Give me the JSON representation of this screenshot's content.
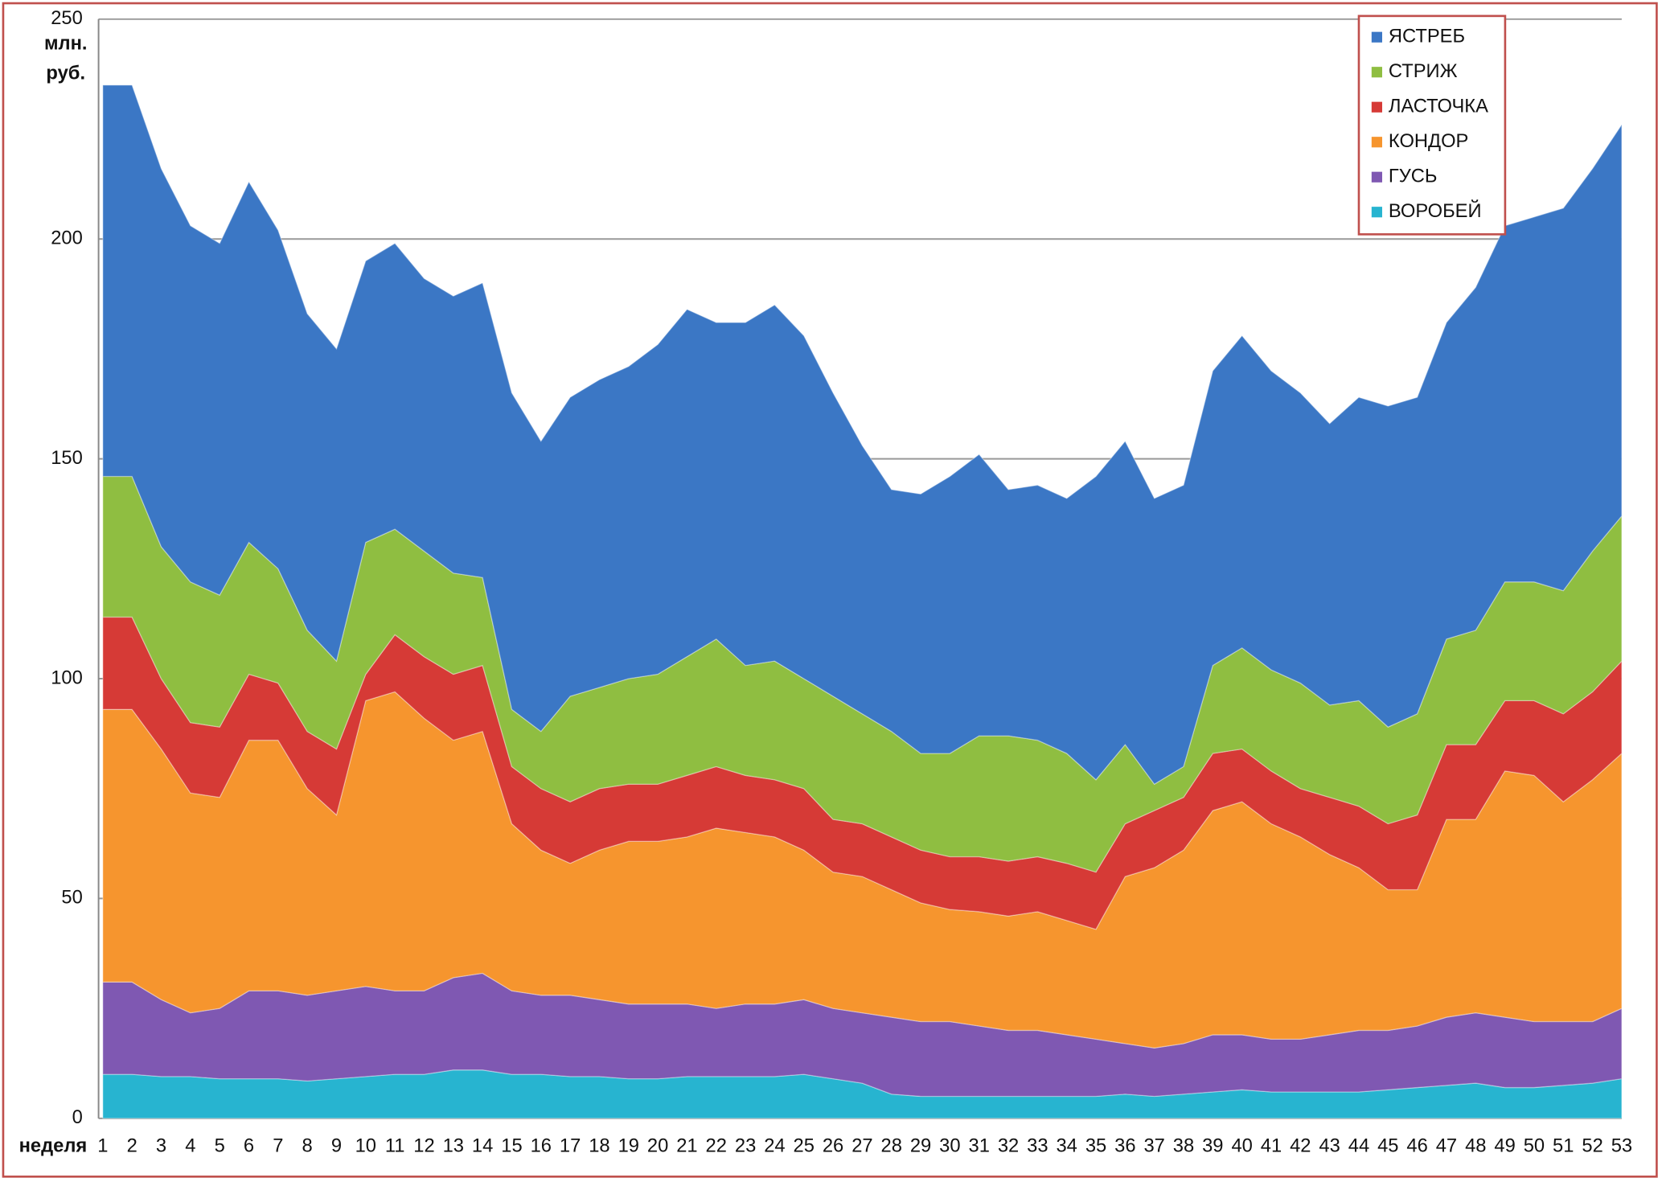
{
  "chart_data": {
    "type": "stacked-area",
    "y_label": "млн. руб.",
    "x_label": "неделя",
    "categories": [
      "1",
      "2",
      "3",
      "4",
      "5",
      "6",
      "7",
      "8",
      "9",
      "10",
      "11",
      "12",
      "13",
      "14",
      "15",
      "16",
      "17",
      "18",
      "19",
      "20",
      "21",
      "22",
      "23",
      "24",
      "25",
      "26",
      "27",
      "28",
      "29",
      "30",
      "31",
      "32",
      "33",
      "34",
      "35",
      "36",
      "37",
      "38",
      "39",
      "40",
      "41",
      "42",
      "43",
      "44",
      "45",
      "46",
      "47",
      "48",
      "49",
      "50",
      "51",
      "52",
      "53"
    ],
    "ylim": [
      0,
      250
    ],
    "yticks": [
      0,
      50,
      100,
      150,
      200,
      250
    ],
    "grid": true,
    "legend": "top-right",
    "series": [
      {
        "name": "ВОРОБЕЙ",
        "color": "#27b4d0",
        "values": [
          10,
          10,
          9.5,
          9.5,
          9,
          9,
          9,
          8.5,
          9,
          9.5,
          10,
          10,
          11,
          11,
          10,
          10,
          9.5,
          9.5,
          9,
          9,
          9.5,
          9.5,
          9.5,
          9.5,
          10,
          9,
          8,
          5.5,
          5,
          5,
          5,
          5,
          5,
          5,
          5,
          5.5,
          5,
          5.5,
          6,
          6.5,
          6,
          6,
          6,
          6,
          6.5,
          7,
          7.5,
          8,
          7,
          7,
          7.5,
          8,
          9
        ]
      },
      {
        "name": "ГУСЬ",
        "color": "#7f58b2",
        "values": [
          21,
          21,
          17.5,
          14.5,
          16,
          20,
          20,
          19.5,
          20,
          20.5,
          19,
          19,
          21,
          22,
          19,
          18,
          18.5,
          17.5,
          17,
          17,
          16.5,
          15.5,
          16.5,
          16.5,
          17,
          16,
          16,
          17.5,
          17,
          17,
          16,
          15,
          15,
          14,
          13,
          11.5,
          11,
          11.5,
          13,
          12.5,
          12,
          12,
          13,
          14,
          13.5,
          14,
          15.5,
          16,
          16,
          15,
          14.5,
          14,
          16
        ]
      },
      {
        "name": "КОНДОР",
        "color": "#f6952e",
        "values": [
          62,
          62,
          57,
          50,
          48,
          57,
          57,
          47,
          40,
          65,
          68,
          62,
          54,
          55,
          38,
          33,
          30,
          34,
          37,
          37,
          38,
          41,
          39,
          38,
          34,
          31,
          31,
          29,
          27,
          25.5,
          26,
          26,
          27,
          26,
          25,
          38,
          41,
          44,
          51,
          53,
          49,
          46,
          41,
          37,
          32,
          31,
          45,
          44,
          56,
          56,
          50,
          55,
          58
        ]
      },
      {
        "name": "ЛАСТОЧКА",
        "color": "#d63a36",
        "values": [
          21,
          21,
          16,
          16,
          16,
          15,
          13,
          13,
          15,
          6,
          13,
          14,
          15,
          15,
          13,
          14,
          14,
          14,
          13,
          13,
          14,
          14,
          13,
          13,
          14,
          12,
          12,
          12,
          12,
          12,
          12.5,
          12.5,
          12.5,
          13,
          13,
          12,
          13,
          12,
          13,
          12,
          12,
          11,
          13,
          14,
          15,
          17,
          17,
          17,
          16,
          17,
          20,
          20,
          21
        ]
      },
      {
        "name": "СТРИЖ",
        "color": "#8fbe41",
        "values": [
          32,
          32,
          30,
          32,
          30,
          30,
          26,
          23,
          20,
          30,
          24,
          24,
          23,
          20,
          13,
          13,
          24,
          23,
          24,
          25,
          27,
          29,
          25,
          27,
          25,
          28,
          25,
          24,
          22,
          23.5,
          27.5,
          28.5,
          26.5,
          25,
          21,
          18,
          6,
          7,
          20,
          23,
          23,
          24,
          21,
          24,
          22,
          23,
          24,
          26,
          27,
          27,
          28,
          32,
          33
        ]
      },
      {
        "name": "ЯСТРЕБ",
        "color": "#3b77c5",
        "values": [
          89,
          89,
          86,
          81,
          80,
          82,
          77,
          72,
          71,
          64,
          65,
          62,
          63,
          67,
          72,
          66,
          68,
          70,
          71,
          75,
          79,
          72,
          78,
          81,
          78,
          69,
          61,
          55,
          59,
          63,
          64,
          56,
          58,
          58,
          69,
          69,
          65,
          64,
          67,
          71,
          68,
          66,
          64,
          69,
          73,
          72,
          72,
          78,
          81,
          83,
          87,
          87,
          89
        ]
      }
    ]
  }
}
